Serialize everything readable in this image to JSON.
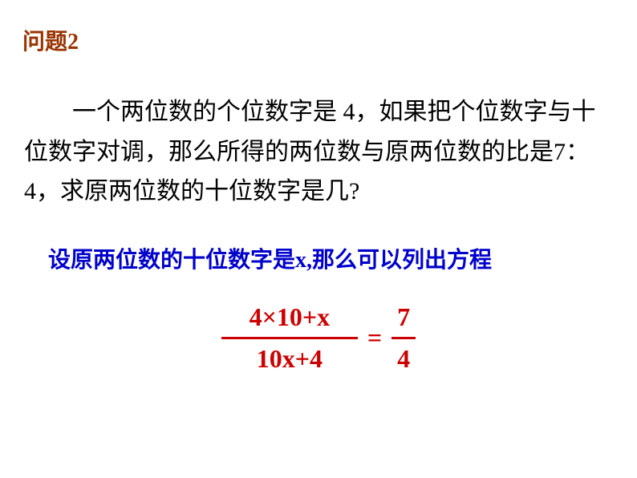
{
  "title": {
    "text": "问题2",
    "color": "#993300",
    "font_size": 28
  },
  "problem": {
    "text": "一个两位数的个位数字是 4，如果把个位数字与十位数字对调，那么所得的两位数与原两位数的比是7：4，求原两位数的十位数字是几?",
    "color": "#000000",
    "font_size": 30
  },
  "solution": {
    "text": "设原两位数的十位数字是x,那么可以列出方程",
    "color": "#0000cc",
    "font_size": 28
  },
  "equation": {
    "color": "#cc0000",
    "font_size": 32,
    "left_fraction": {
      "numerator": "4×10+x",
      "denominator": "10x+4",
      "line_width": 170
    },
    "equals": "=",
    "right_fraction": {
      "numerator": "7",
      "denominator": "4",
      "line_width": 30
    }
  },
  "background_color": "#ffffff"
}
